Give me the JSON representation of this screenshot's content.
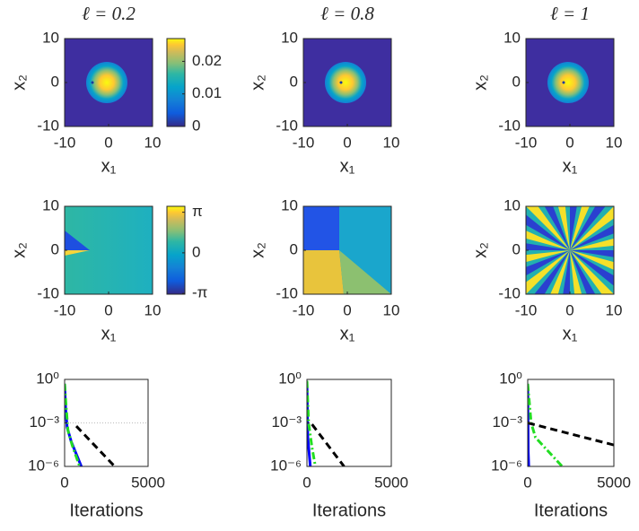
{
  "chart_data": [
    {
      "type": "heatmap",
      "title": "ℓ = 0.2",
      "xlabel": "x₁",
      "ylabel": "x₂",
      "xlim": [
        -10,
        10
      ],
      "ylim": [
        -10,
        10
      ],
      "xticks": [
        -10,
        0,
        10
      ],
      "yticks": [
        -10,
        0,
        10
      ],
      "colorbar": {
        "lim": [
          0,
          0.027
        ],
        "ticks": [
          0,
          0.01,
          0.02
        ]
      }
    },
    {
      "type": "heatmap",
      "title": "ℓ = 0.8",
      "xlabel": "x₁",
      "ylabel": "x₂",
      "xlim": [
        -10,
        10
      ],
      "ylim": [
        -10,
        10
      ],
      "xticks": [
        -10,
        0,
        10
      ],
      "yticks": [
        -10,
        0,
        10
      ]
    },
    {
      "type": "heatmap",
      "title": "ℓ = 1",
      "xlabel": "x₁",
      "ylabel": "x₂",
      "xlim": [
        -10,
        10
      ],
      "ylim": [
        -10,
        10
      ],
      "xticks": [
        -10,
        0,
        10
      ],
      "yticks": [
        -10,
        0,
        10
      ]
    },
    {
      "type": "heatmap",
      "xlabel": "x₁",
      "ylabel": "x₂",
      "xlim": [
        -10,
        10
      ],
      "ylim": [
        -10,
        10
      ],
      "xticks": [
        -10,
        0,
        10
      ],
      "yticks": [
        -10,
        0,
        10
      ],
      "colorbar": {
        "lim": [
          -3.2,
          3.6
        ],
        "ticks": [
          {
            "value": 3.1416,
            "label": "π"
          },
          0,
          {
            "value": -3.1416,
            "label": "-π"
          }
        ]
      }
    },
    {
      "type": "heatmap",
      "xlabel": "x₁",
      "ylabel": "x₂",
      "xlim": [
        -10,
        10
      ],
      "ylim": [
        -10,
        10
      ],
      "xticks": [
        -10,
        0,
        10
      ],
      "yticks": [
        -10,
        0,
        10
      ]
    },
    {
      "type": "heatmap",
      "xlabel": "x₁",
      "ylabel": "x₂",
      "xlim": [
        -10,
        10
      ],
      "ylim": [
        -10,
        10
      ],
      "xticks": [
        -10,
        0,
        10
      ],
      "yticks": [
        -10,
        0,
        10
      ]
    },
    {
      "type": "line",
      "xlabel": "Iterations",
      "log_y": true,
      "grid": true,
      "xlim": [
        0,
        5000
      ],
      "ylim": [
        1e-06,
        1
      ],
      "xticks": [
        0,
        5000
      ],
      "yticks": [
        {
          "value": 1,
          "label": "10⁰"
        },
        {
          "value": 0.001,
          "label": "10⁻³"
        },
        {
          "value": 1e-06,
          "label": "10⁻⁶"
        }
      ],
      "series": [
        {
          "color": "#0000ff",
          "style": "solid",
          "x": [
            0,
            60,
            150,
            400,
            1000
          ],
          "values": [
            0.5,
            0.01,
            0.0005,
            5e-05,
            1e-06
          ]
        },
        {
          "color": "#22dd22",
          "style": "dashdot",
          "x": [
            0,
            80,
            200,
            450,
            900
          ],
          "values": [
            0.5,
            0.02,
            0.0003,
            3e-05,
            1e-06
          ]
        },
        {
          "color": "#000000",
          "style": "dashed",
          "x": [
            700,
            3000
          ],
          "values": [
            0.0006,
            1e-06
          ]
        }
      ]
    },
    {
      "type": "line",
      "xlabel": "Iterations",
      "log_y": true,
      "grid": false,
      "xlim": [
        0,
        5000
      ],
      "ylim": [
        1e-06,
        1
      ],
      "xticks": [
        0,
        5000
      ],
      "yticks": [
        {
          "value": 1,
          "label": "10⁰"
        },
        {
          "value": 0.001,
          "label": "10⁻³"
        },
        {
          "value": 1e-06,
          "label": "10⁻⁶"
        }
      ],
      "series": [
        {
          "color": "#0000ff",
          "style": "solid",
          "x": [
            0,
            50,
            200
          ],
          "values": [
            0.8,
            0.0001,
            1e-06
          ]
        },
        {
          "color": "#22dd22",
          "style": "dashdot",
          "x": [
            0,
            100,
            300,
            500
          ],
          "values": [
            0.8,
            0.001,
            2e-05,
            1e-06
          ]
        },
        {
          "color": "#000000",
          "style": "dashed",
          "x": [
            300,
            2200
          ],
          "values": [
            0.0008,
            1e-06
          ]
        }
      ]
    },
    {
      "type": "line",
      "xlabel": "Iterations",
      "log_y": true,
      "grid": false,
      "xlim": [
        0,
        5000
      ],
      "ylim": [
        1e-06,
        1
      ],
      "xticks": [
        0,
        5000
      ],
      "yticks": [
        {
          "value": 1,
          "label": "10⁰"
        },
        {
          "value": 0.001,
          "label": "10⁻³"
        },
        {
          "value": 1e-06,
          "label": "10⁻⁶"
        }
      ],
      "series": [
        {
          "color": "#0000ff",
          "style": "solid",
          "x": [
            0,
            30,
            60
          ],
          "values": [
            0.5,
            1e-05,
            1e-06
          ]
        },
        {
          "color": "#22dd22",
          "style": "dashdot",
          "x": [
            0,
            200,
            450,
            2000
          ],
          "values": [
            0.5,
            0.001,
            0.0001,
            1e-06
          ]
        },
        {
          "color": "#000000",
          "style": "dashed",
          "x": [
            0,
            5000
          ],
          "values": [
            0.001,
            3e-05
          ]
        }
      ]
    }
  ]
}
